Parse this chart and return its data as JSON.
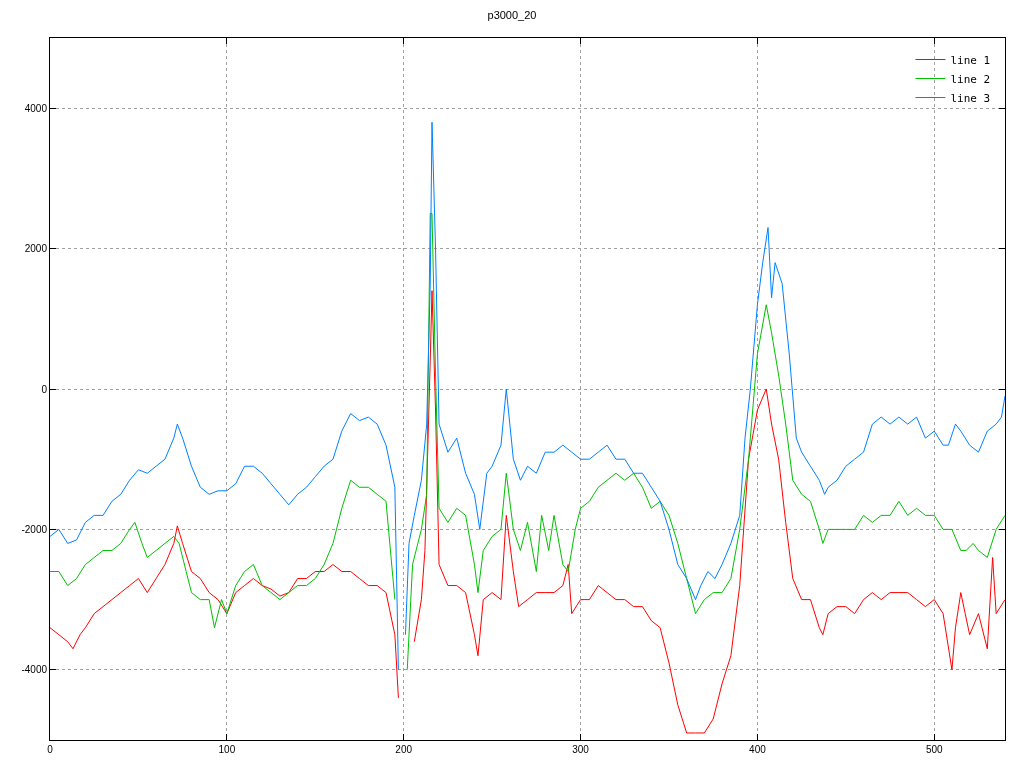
{
  "chart_data": {
    "type": "line",
    "title": "p3000_20",
    "xlim": [
      0,
      540
    ],
    "ylim": [
      -5000,
      5000
    ],
    "xticks": [
      0,
      100,
      200,
      300,
      400,
      500
    ],
    "yticks": [
      -4000,
      -2000,
      0,
      2000,
      4000
    ],
    "grid": true,
    "legend": "top right",
    "line_style": "solid",
    "marker": "none",
    "series": [
      {
        "name": "line 1",
        "color": "#ff0000",
        "x": [
          0,
          5,
          10,
          13,
          17,
          20,
          25,
          30,
          35,
          40,
          45,
          50,
          55,
          60,
          65,
          70,
          72,
          75,
          80,
          85,
          90,
          95,
          100,
          105,
          110,
          115,
          120,
          125,
          130,
          135,
          140,
          145,
          150,
          155,
          160,
          165,
          170,
          175,
          180,
          185,
          190,
          195,
          197,
          199,
          203,
          206,
          210,
          212,
          215,
          216,
          218,
          220,
          225,
          230,
          235,
          240,
          242,
          245,
          250,
          255,
          258,
          262,
          265,
          270,
          275,
          280,
          285,
          290,
          293,
          295,
          300,
          305,
          310,
          315,
          320,
          325,
          330,
          335,
          340,
          345,
          350,
          355,
          360,
          365,
          370,
          375,
          380,
          385,
          390,
          395,
          400,
          405,
          408,
          412,
          416,
          420,
          425,
          430,
          435,
          437,
          440,
          445,
          450,
          455,
          460,
          465,
          470,
          475,
          480,
          485,
          490,
          495,
          500,
          505,
          510,
          512,
          515,
          520,
          525,
          530,
          533,
          535,
          540
        ],
        "values": [
          -3400,
          -3500,
          -3600,
          -3700,
          -3500,
          -3400,
          -3200,
          -3100,
          -3000,
          -2900,
          -2800,
          -2700,
          -2900,
          -2700,
          -2500,
          -2200,
          -1950,
          -2200,
          -2600,
          -2700,
          -2900,
          -3000,
          -3200,
          -2900,
          -2800,
          -2700,
          -2800,
          -2850,
          -2950,
          -2900,
          -2700,
          -2700,
          -2600,
          -2600,
          -2500,
          -2600,
          -2600,
          -2700,
          -2800,
          -2800,
          -2900,
          -3500,
          -4400,
          null,
          null,
          -3600,
          -3000,
          -2300,
          400,
          1400,
          -300,
          -2500,
          -2800,
          -2800,
          -2900,
          -3500,
          -3800,
          -3000,
          -2900,
          -3000,
          -1800,
          -2600,
          -3100,
          -3000,
          -2900,
          -2900,
          -2900,
          -2800,
          -2500,
          -3200,
          -3000,
          -3000,
          -2800,
          -2900,
          -3000,
          -3000,
          -3100,
          -3100,
          -3300,
          -3400,
          -3900,
          -4500,
          -4900,
          -4900,
          -4900,
          -4700,
          -4200,
          -3800,
          -2800,
          -1000,
          -300,
          0,
          -500,
          -1000,
          -1900,
          -2700,
          -3000,
          -3000,
          -3400,
          -3500,
          -3200,
          -3100,
          -3100,
          -3200,
          -3000,
          -2900,
          -3000,
          -2900,
          -2900,
          -2900,
          -3000,
          -3100,
          -3000,
          -3200,
          -4000,
          -3400,
          -2900,
          -3500,
          -3200,
          -3700,
          -2400,
          -3200,
          -3000
        ]
      },
      {
        "name": "line 2",
        "color": "#00c000",
        "x": [
          0,
          5,
          10,
          15,
          20,
          25,
          30,
          35,
          40,
          45,
          48,
          52,
          55,
          60,
          65,
          70,
          73,
          77,
          80,
          85,
          90,
          93,
          97,
          100,
          105,
          110,
          115,
          120,
          125,
          130,
          135,
          140,
          145,
          150,
          155,
          160,
          165,
          170,
          175,
          180,
          185,
          190,
          195,
          198,
          200,
          202,
          205,
          210,
          213,
          215,
          216,
          218,
          220,
          225,
          230,
          235,
          240,
          242,
          245,
          250,
          255,
          258,
          262,
          266,
          270,
          275,
          278,
          282,
          285,
          290,
          293,
          297,
          300,
          305,
          310,
          315,
          320,
          325,
          330,
          335,
          340,
          345,
          350,
          355,
          360,
          365,
          370,
          375,
          380,
          385,
          390,
          395,
          400,
          405,
          408,
          412,
          416,
          420,
          425,
          430,
          435,
          437,
          440,
          445,
          450,
          455,
          460,
          465,
          470,
          475,
          480,
          485,
          490,
          495,
          500,
          505,
          510,
          515,
          518,
          522,
          525,
          530,
          535,
          540
        ],
        "values": [
          -2600,
          -2600,
          -2800,
          -2700,
          -2500,
          -2400,
          -2300,
          -2300,
          -2200,
          -2000,
          -1900,
          -2200,
          -2400,
          -2300,
          -2200,
          -2100,
          -2200,
          -2600,
          -2900,
          -3000,
          -3000,
          -3400,
          -3000,
          -3200,
          -2800,
          -2600,
          -2500,
          -2800,
          -2900,
          -3000,
          -2900,
          -2800,
          -2800,
          -2700,
          -2500,
          -2200,
          -1700,
          -1300,
          -1400,
          -1400,
          -1500,
          -1600,
          -3000,
          null,
          null,
          -4000,
          -2500,
          -2000,
          -1500,
          2500,
          2500,
          200,
          -1700,
          -1900,
          -1700,
          -1800,
          -2500,
          -2900,
          -2300,
          -2100,
          -2000,
          -1200,
          -2000,
          -2300,
          -1900,
          -2600,
          -1800,
          -2300,
          -1800,
          -2500,
          -2600,
          -2000,
          -1700,
          -1600,
          -1400,
          -1300,
          -1200,
          -1300,
          -1200,
          -1400,
          -1700,
          -1600,
          -1800,
          -2200,
          -2700,
          -3200,
          -3000,
          -2900,
          -2900,
          -2700,
          -2000,
          -1000,
          500,
          1200,
          800,
          200,
          -500,
          -1300,
          -1500,
          -1600,
          -2000,
          -2200,
          -2000,
          -2000,
          -2000,
          -2000,
          -1800,
          -1900,
          -1800,
          -1800,
          -1600,
          -1800,
          -1700,
          -1800,
          -1800,
          -2000,
          -2000,
          -2300,
          -2300,
          -2200,
          -2300,
          -2400,
          -2000,
          -1800
        ]
      },
      {
        "name": "line 3",
        "color": "#0080ff",
        "x": [
          0,
          5,
          10,
          15,
          20,
          25,
          30,
          35,
          40,
          45,
          50,
          55,
          60,
          65,
          70,
          72,
          75,
          80,
          85,
          90,
          95,
          100,
          105,
          110,
          115,
          120,
          125,
          130,
          135,
          140,
          145,
          150,
          155,
          160,
          165,
          170,
          175,
          180,
          185,
          190,
          195,
          197,
          199,
          201,
          203,
          206,
          210,
          213,
          215,
          216,
          218,
          220,
          225,
          230,
          235,
          240,
          243,
          247,
          250,
          255,
          258,
          262,
          266,
          270,
          275,
          280,
          285,
          290,
          295,
          300,
          305,
          310,
          315,
          320,
          325,
          330,
          335,
          340,
          345,
          350,
          355,
          360,
          365,
          368,
          372,
          376,
          380,
          385,
          390,
          393,
          396,
          400,
          403,
          406,
          408,
          410,
          414,
          418,
          422,
          425,
          430,
          435,
          438,
          440,
          445,
          450,
          455,
          460,
          465,
          470,
          475,
          480,
          485,
          490,
          495,
          500,
          505,
          508,
          512,
          515,
          520,
          525,
          530,
          535,
          538,
          540
        ],
        "values": [
          -2100,
          -2000,
          -2200,
          -2150,
          -1900,
          -1800,
          -1800,
          -1600,
          -1500,
          -1300,
          -1150,
          -1200,
          -1100,
          -1000,
          -700,
          -500,
          -700,
          -1100,
          -1400,
          -1500,
          -1450,
          -1450,
          -1350,
          -1100,
          -1100,
          -1200,
          -1350,
          -1500,
          -1650,
          -1500,
          -1400,
          -1250,
          -1100,
          -1000,
          -600,
          -350,
          -450,
          -400,
          -500,
          -800,
          -1400,
          -4000,
          null,
          -3500,
          -2200,
          -1800,
          -1300,
          -500,
          1500,
          3800,
          2000,
          -500,
          -900,
          -700,
          -1200,
          -1500,
          -2000,
          -1200,
          -1100,
          -800,
          0,
          -1000,
          -1300,
          -1100,
          -1200,
          -900,
          -900,
          -800,
          -900,
          -1000,
          -1000,
          -900,
          -800,
          -1000,
          -1000,
          -1200,
          -1200,
          -1400,
          -1600,
          -2000,
          -2500,
          -2700,
          -3000,
          -2800,
          -2600,
          -2700,
          -2500,
          -2200,
          -1800,
          -700,
          0,
          1200,
          1800,
          2300,
          1300,
          1800,
          1500,
          500,
          -700,
          -900,
          -1100,
          -1300,
          -1500,
          -1400,
          -1300,
          -1100,
          -1000,
          -900,
          -500,
          -400,
          -500,
          -400,
          -500,
          -400,
          -700,
          -600,
          -800,
          -800,
          -500,
          -600,
          -800,
          -900,
          -600,
          -500,
          -400,
          -100
        ]
      }
    ]
  }
}
